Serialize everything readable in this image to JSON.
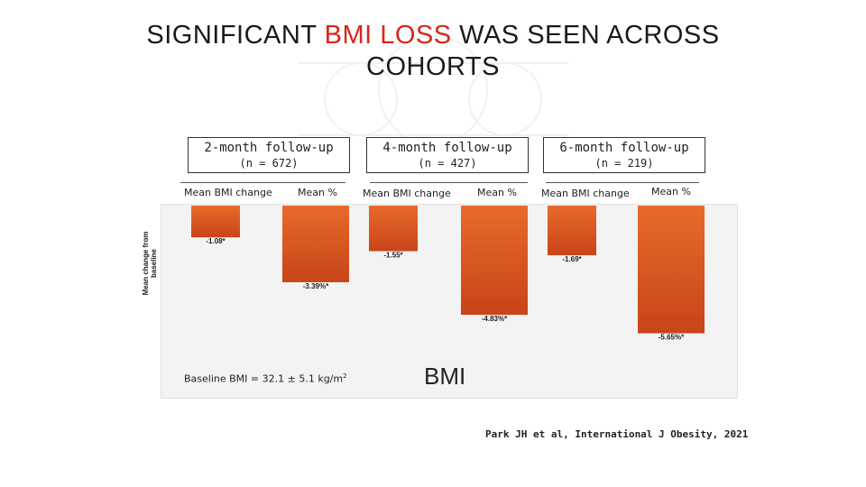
{
  "title": {
    "part1": "SIGNIFICANT ",
    "highlight": "BMI LOSS",
    "part2": " WAS SEEN ACROSS COHORTS",
    "highlight_color": "#d9261c"
  },
  "cohorts": [
    {
      "label": "2-month follow-up",
      "n": "(n = 672)",
      "col1": "Mean BMI change",
      "col2": "Mean %"
    },
    {
      "label": "4-month follow-up",
      "n": "(n = 427)",
      "col1": "Mean BMI change",
      "col2": "Mean %"
    },
    {
      "label": "6-month follow-up",
      "n": "(n = 219)",
      "col1": "Mean BMI change",
      "col2": "Mean %"
    }
  ],
  "baseline": {
    "text": "Baseline BMI = 32.1 ± 5.1 kg/m",
    "sup": "2"
  },
  "citation": "Park JH et al, International J Obesity, 2021",
  "chart_data": {
    "type": "bar",
    "xlabel": "BMI",
    "ylabel": "Mean change from baseline",
    "ylim": [
      -6.4,
      0
    ],
    "grid": false,
    "bar_color_top": "#e86a2a",
    "bar_color_bottom": "#c8441a",
    "series": [
      {
        "name": "Mean BMI change",
        "values": [
          -1.08,
          -1.55,
          -1.69
        ],
        "labels": [
          "-1.08*",
          "-1.55*",
          "-1.69*"
        ]
      },
      {
        "name": "Mean %",
        "values": [
          -3.39,
          -4.83,
          -5.65
        ],
        "labels": [
          "-3.39%*",
          "-4.83%*",
          "-5.65%*"
        ]
      }
    ],
    "categories": [
      "2-month follow-up",
      "4-month follow-up",
      "6-month follow-up"
    ]
  }
}
